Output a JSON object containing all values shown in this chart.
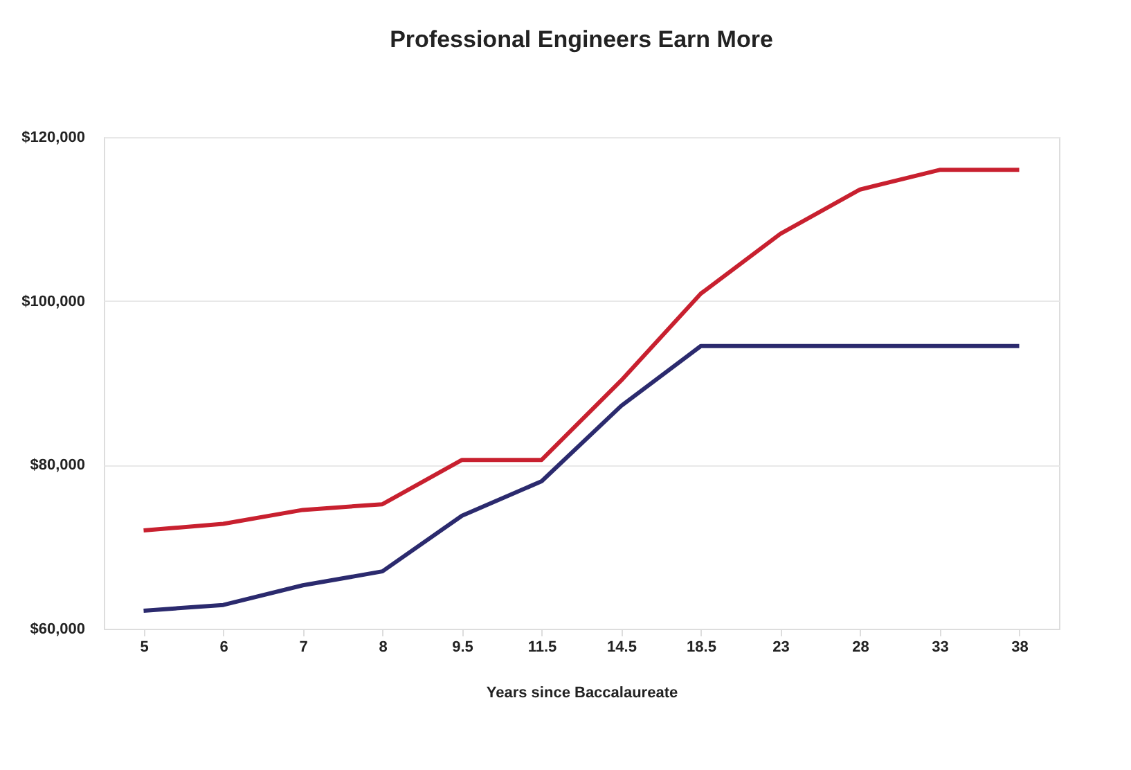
{
  "chart_data": {
    "type": "line",
    "title": "Professional Engineers Earn More",
    "xlabel": "Years since Baccalaureate",
    "categories": [
      "5",
      "6",
      "7",
      "8",
      "9.5",
      "11.5",
      "14.5",
      "18.5",
      "23",
      "28",
      "33",
      "38"
    ],
    "series": [
      {
        "color": "#c8202f",
        "values": [
          72000,
          72800,
          74500,
          75200,
          80600,
          80600,
          90300,
          100900,
          108200,
          113600,
          116000,
          116000
        ]
      },
      {
        "color": "#2b2a6e",
        "values": [
          62200,
          62900,
          65300,
          67000,
          73800,
          78000,
          87200,
          94500,
          94500,
          94500,
          94500,
          94500
        ]
      }
    ],
    "ylim": [
      60000,
      120000
    ],
    "yticks": [
      {
        "value": 60000,
        "label": "$60,000"
      },
      {
        "value": 80000,
        "label": "$80,000"
      },
      {
        "value": 100000,
        "label": "$100,000"
      },
      {
        "value": 120000,
        "label": "$120,000"
      }
    ],
    "grid": "y",
    "marker": "none",
    "line_style": "solid"
  }
}
